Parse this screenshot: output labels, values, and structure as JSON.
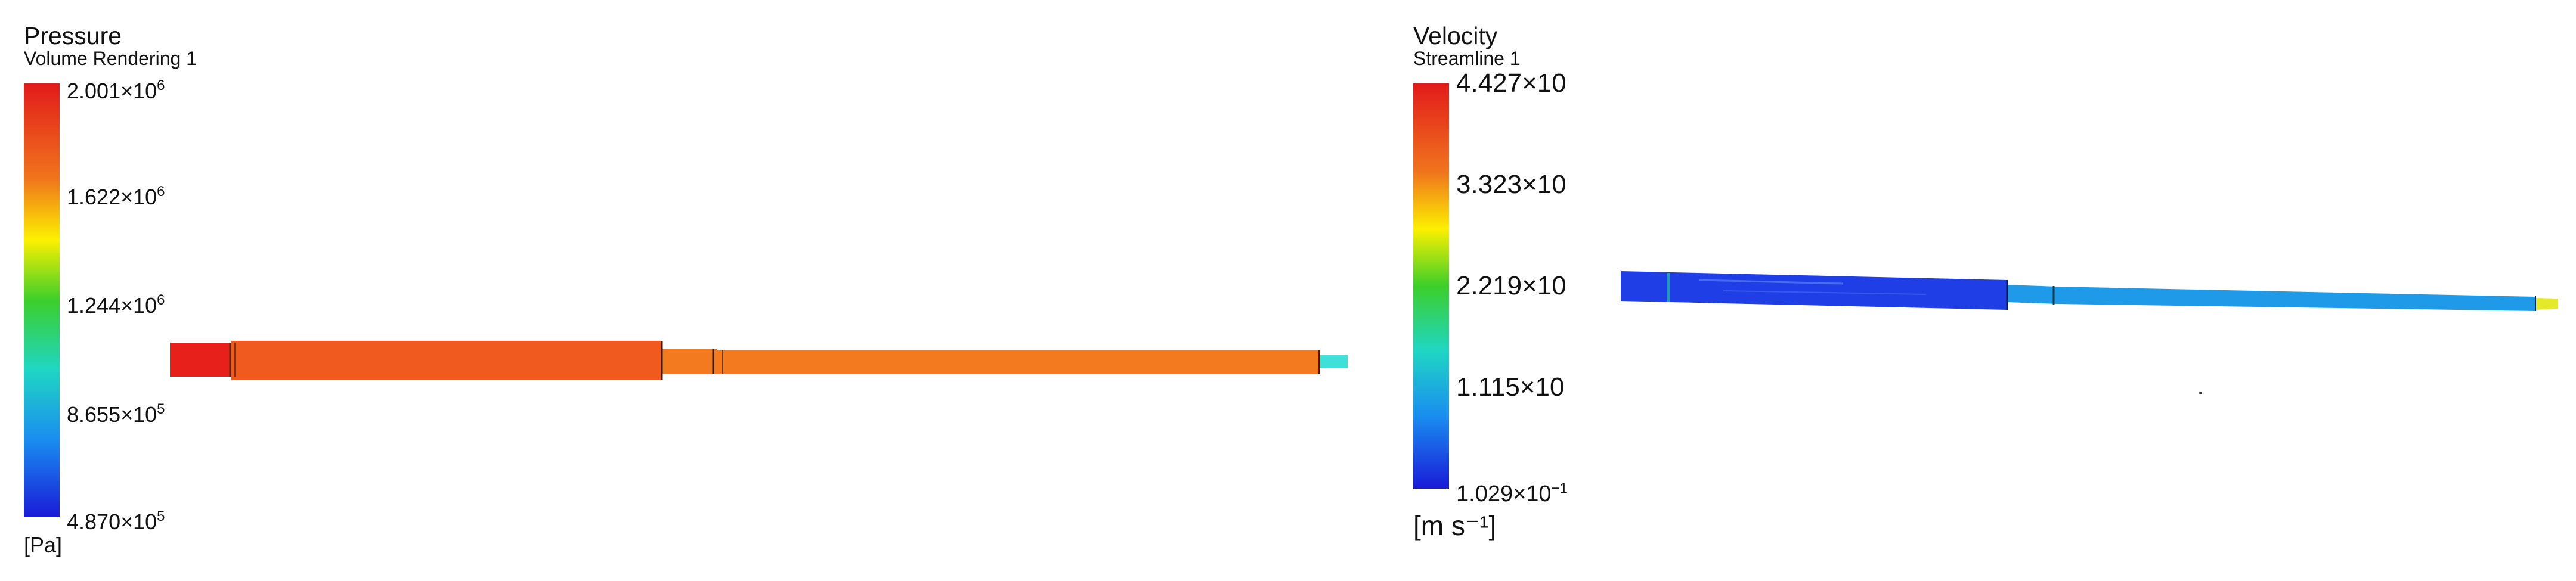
{
  "pressure_panel": {
    "title": "Pressure",
    "subtitle": "Volume Rendering 1",
    "unit": "[Pa]",
    "ticks": [
      {
        "mantissa": "2.001",
        "exponent": "6"
      },
      {
        "mantissa": "1.622",
        "exponent": "6"
      },
      {
        "mantissa": "1.244",
        "exponent": "6"
      },
      {
        "mantissa": "8.655",
        "exponent": "5"
      },
      {
        "mantissa": "4.870",
        "exponent": "5"
      }
    ],
    "colors": {
      "inlet": "#e8201c",
      "main_pipe": "#f05a1e",
      "second_pipe": "#f37a1e",
      "outlet": "#3fe0d8"
    }
  },
  "velocity_panel": {
    "title": "Velocity",
    "subtitle": "Streamline 1",
    "unit": "[m s⁻¹]",
    "ticks": [
      {
        "mantissa": "4.427",
        "exponent": ""
      },
      {
        "mantissa": "3.323",
        "exponent": ""
      },
      {
        "mantissa": "2.219",
        "exponent": ""
      },
      {
        "mantissa": "1.115",
        "exponent": ""
      },
      {
        "mantissa": "1.029",
        "exponent": "−1"
      }
    ],
    "colors": {
      "first_pipe": "#1f3ee6",
      "second_pipe": "#1f9ae8",
      "outlet": "#e4ea2a"
    }
  }
}
